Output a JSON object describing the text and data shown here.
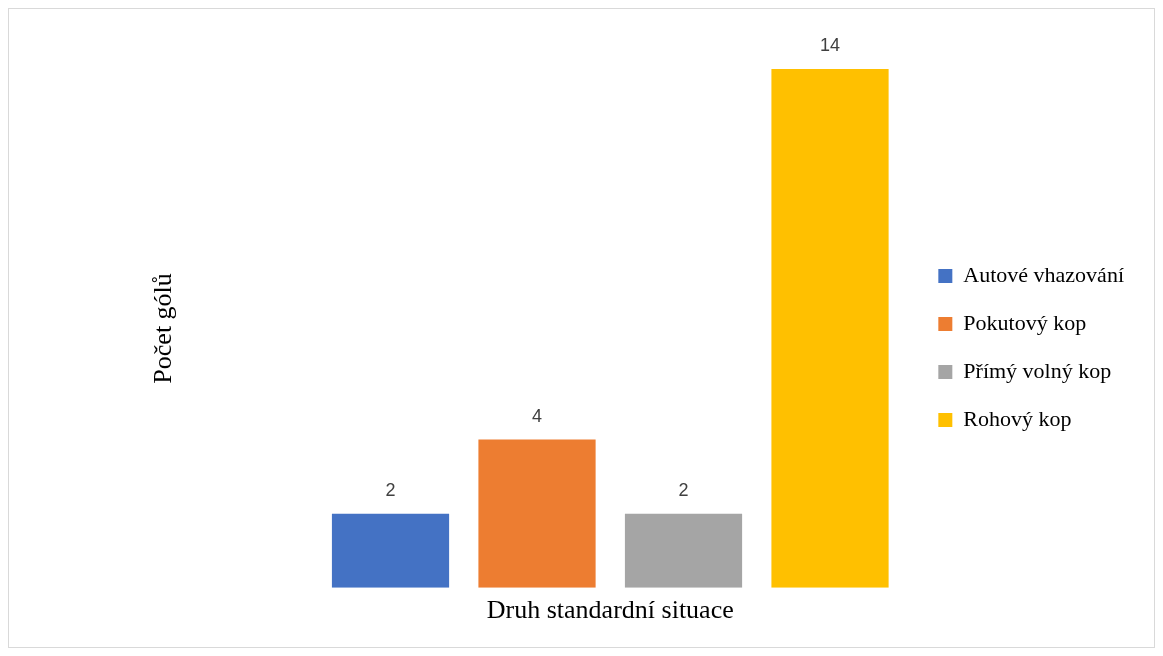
{
  "chart_data": {
    "type": "bar",
    "xlabel": "Druh standardní situace",
    "ylabel": "Počet gólů",
    "categories": [
      null
    ],
    "series": [
      {
        "name": "Autové vhazování",
        "color": "#4472c4",
        "values": [
          2
        ]
      },
      {
        "name": "Pokutový kop",
        "color": "#ed7d31",
        "values": [
          4
        ]
      },
      {
        "name": "Přímý volný kop",
        "color": "#a5a5a5",
        "values": [
          2
        ]
      },
      {
        "name": "Rohový kop",
        "color": "#ffc000",
        "values": [
          14
        ]
      }
    ],
    "data_labels": true,
    "legend": "right",
    "grid": false
  }
}
